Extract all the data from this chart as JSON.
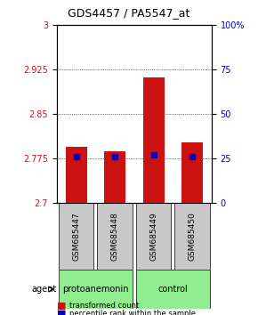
{
  "title": "GDS4457 / PA5547_at",
  "samples": [
    "GSM685447",
    "GSM685448",
    "GSM685449",
    "GSM685450"
  ],
  "bar_values": [
    2.795,
    2.788,
    2.912,
    2.803
  ],
  "percentile_values": [
    2.778,
    2.778,
    2.782,
    2.778
  ],
  "bar_bottom": 2.7,
  "ylim_left": [
    2.7,
    3.0
  ],
  "ylim_right": [
    0,
    100
  ],
  "yticks_left": [
    2.7,
    2.775,
    2.85,
    2.925,
    3.0
  ],
  "yticks_right": [
    0,
    25,
    50,
    75,
    100
  ],
  "bar_color": "#CC1111",
  "percentile_color": "#0000CC",
  "groups": [
    {
      "label": "protoanemonin",
      "samples": [
        0,
        1
      ],
      "color": "#90EE90"
    },
    {
      "label": "control",
      "samples": [
        2,
        3
      ],
      "color": "#90EE90"
    }
  ],
  "group_bg_colors": [
    "#C8C8C8",
    "#C8C8C8"
  ],
  "agent_label": "agent",
  "legend_items": [
    {
      "label": "transformed count",
      "color": "#CC1111"
    },
    {
      "label": "percentile rank within the sample",
      "color": "#0000CC"
    }
  ],
  "bar_width": 0.55,
  "background_color": "#ffffff",
  "grid_color": "#000000"
}
